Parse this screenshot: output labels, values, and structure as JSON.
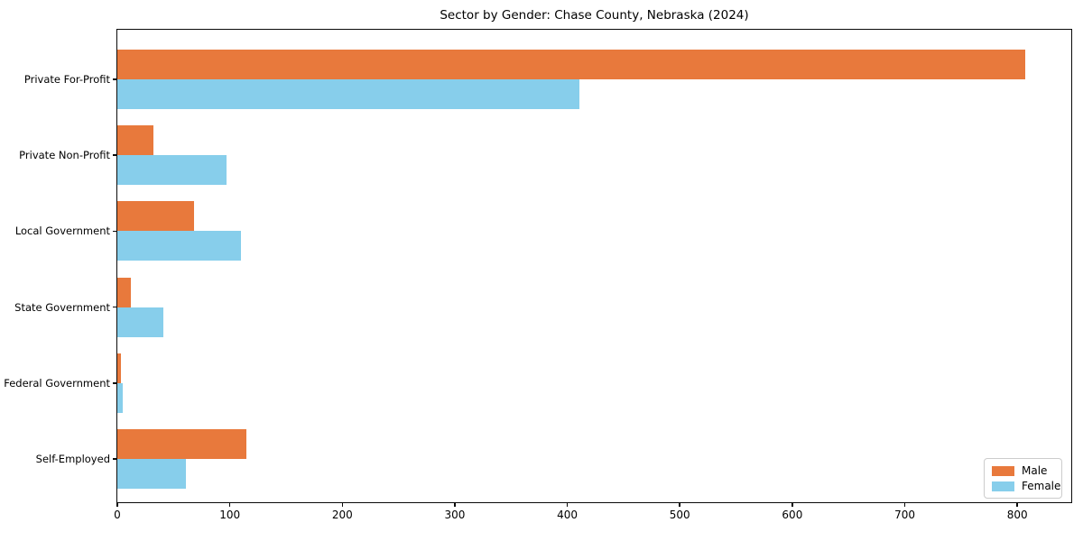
{
  "chart_data": {
    "type": "bar",
    "orientation": "horizontal",
    "title": "Sector by Gender: Chase County, Nebraska (2024)",
    "categories": [
      "Private For-Profit",
      "Private Non-Profit",
      "Local Government",
      "State Government",
      "Federal Government",
      "Self-Employed"
    ],
    "series": [
      {
        "name": "Male",
        "color": "#e8793c",
        "values": [
          807,
          32,
          68,
          12,
          3,
          115
        ]
      },
      {
        "name": "Female",
        "color": "#87ceeb",
        "values": [
          411,
          97,
          110,
          41,
          5,
          61
        ]
      }
    ],
    "xlabel": "",
    "ylabel": "",
    "xlim": [
      0,
      848
    ],
    "x_ticks": [
      0,
      100,
      200,
      300,
      400,
      500,
      600,
      700,
      800
    ],
    "grid": false,
    "legend_position": "lower right",
    "axis_color": "#0a0a0a"
  }
}
